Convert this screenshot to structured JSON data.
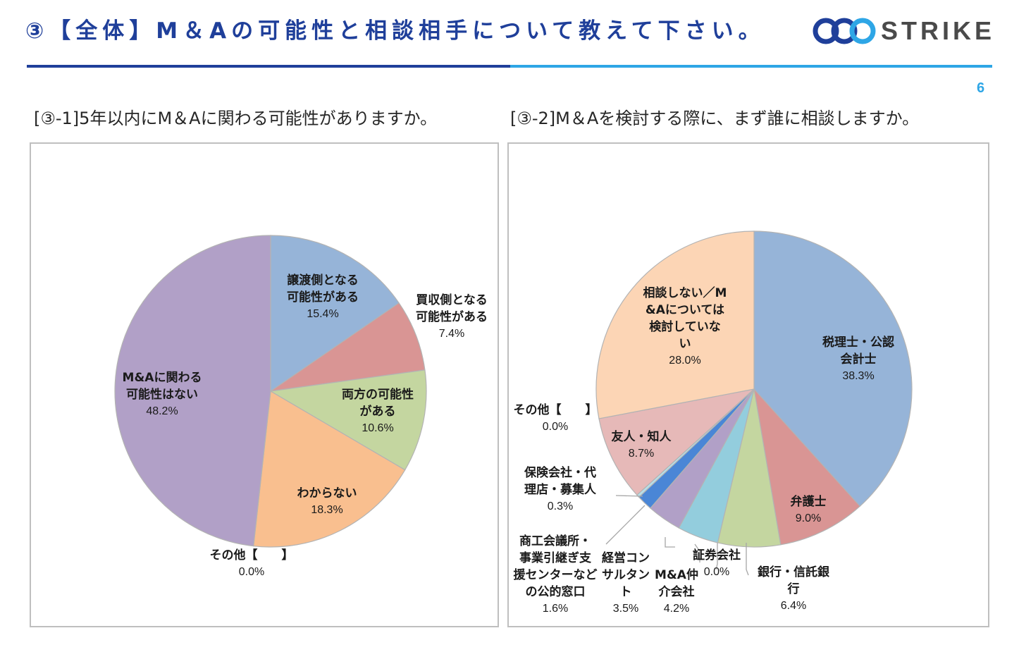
{
  "header": {
    "title": "③【全体】M＆Aの可能性と相談相手について教えて下さい。",
    "logo_text": "STRIKE",
    "page_number": "6"
  },
  "colors": {
    "title": "#1f3f9a",
    "rule_left": "#1f3f9a",
    "rule_right": "#2ea6e6",
    "logo_ring_dark": "#1f3f9a",
    "logo_ring_light": "#2ea6e6"
  },
  "chart_data": [
    {
      "type": "pie",
      "title": "[③-1]5年以内にM＆Aに関わる可能性がありますか。",
      "start": "12 o'clock, clockwise",
      "slices": [
        {
          "label": "譲渡側となる可能性がある",
          "value": 15.4,
          "pct": "15.4%",
          "color": "#96b4d8"
        },
        {
          "label": "買収側となる可能性がある",
          "value": 7.4,
          "pct": "7.4%",
          "color": "#d99594"
        },
        {
          "label": "両方の可能性がある",
          "value": 10.6,
          "pct": "10.6%",
          "color": "#c4d6a0"
        },
        {
          "label": "わからない",
          "value": 18.3,
          "pct": "18.3%",
          "color": "#f9bf8f"
        },
        {
          "label": "その他【　　】",
          "value": 0.0,
          "pct": "0.0%",
          "color": "#c0c0c0"
        },
        {
          "label": "M&Aに関わる可能性はない",
          "value": 48.2,
          "pct": "48.2%",
          "color": "#b1a0c7"
        }
      ]
    },
    {
      "type": "pie",
      "title": "[③-2]M＆Aを検討する際に、まず誰に相談しますか。",
      "start": "12 o'clock, clockwise",
      "slices": [
        {
          "label": "税理士・公認会計士",
          "value": 38.3,
          "pct": "38.3%",
          "color": "#96b4d8"
        },
        {
          "label": "弁護士",
          "value": 9.0,
          "pct": "9.0%",
          "color": "#d99594"
        },
        {
          "label": "銀行・信託銀行",
          "value": 6.4,
          "pct": "6.4%",
          "color": "#c4d6a0"
        },
        {
          "label": "証券会社",
          "value": 0.0,
          "pct": "0.0%",
          "color": "#b7dee8"
        },
        {
          "label": "M&A仲介会社",
          "value": 4.2,
          "pct": "4.2%",
          "color": "#93cddd"
        },
        {
          "label": "経営コンサルタント",
          "value": 3.5,
          "pct": "3.5%",
          "color": "#b1a0c7"
        },
        {
          "label": "商工会議所・事業引継ぎ支援センターなどの公的窓口",
          "value": 1.6,
          "pct": "1.6%",
          "color": "#4a86d6"
        },
        {
          "label": "保険会社・代理店・募集人",
          "value": 0.3,
          "pct": "0.3%",
          "color": "#b7dee8"
        },
        {
          "label": "友人・知人",
          "value": 8.7,
          "pct": "8.7%",
          "color": "#e6b9b8"
        },
        {
          "label": "その他【　　】",
          "value": 0.0,
          "pct": "0.0%",
          "color": "#c0c0c0"
        },
        {
          "label": "相談しない／M&Aについては検討していない",
          "value": 28.0,
          "pct": "28.0%",
          "color": "#fcd5b5"
        }
      ]
    }
  ],
  "labels1": [
    {
      "lines": [
        "譲渡側となる",
        "可能性がある"
      ],
      "pct": "15.4%"
    },
    {
      "lines": [
        "買収側となる",
        "可能性がある"
      ],
      "pct": "7.4%"
    },
    {
      "lines": [
        "両方の可能性",
        "がある"
      ],
      "pct": "10.6%"
    },
    {
      "lines": [
        "わからない"
      ],
      "pct": "18.3%"
    },
    {
      "lines": [
        "その他【　　】"
      ],
      "pct": "0.0%"
    },
    {
      "lines": [
        "M&Aに関わる",
        "可能性はない"
      ],
      "pct": "48.2%"
    }
  ],
  "labels2": [
    {
      "lines": [
        "税理士・公認",
        "会計士"
      ],
      "pct": "38.3%"
    },
    {
      "lines": [
        "弁護士"
      ],
      "pct": "9.0%"
    },
    {
      "lines": [
        "銀行・信託銀",
        "行"
      ],
      "pct": "6.4%"
    },
    {
      "lines": [
        "証券会社"
      ],
      "pct": "0.0%"
    },
    {
      "lines": [
        "M&A仲",
        "介会社"
      ],
      "pct": "4.2%"
    },
    {
      "lines": [
        "経営コン",
        "サルタン",
        "ト"
      ],
      "pct": "3.5%"
    },
    {
      "lines": [
        "商工会議所・",
        "事業引継ぎ支",
        "援センターなど",
        "の公的窓口"
      ],
      "pct": "1.6%"
    },
    {
      "lines": [
        "保険会社・代",
        "理店・募集人"
      ],
      "pct": "0.3%"
    },
    {
      "lines": [
        "友人・知人"
      ],
      "pct": "8.7%"
    },
    {
      "lines": [
        "その他【　　】"
      ],
      "pct": "0.0%"
    },
    {
      "lines": [
        "相談しない／M",
        "&Aについては",
        "検討していな",
        "い"
      ],
      "pct": "28.0%"
    }
  ]
}
